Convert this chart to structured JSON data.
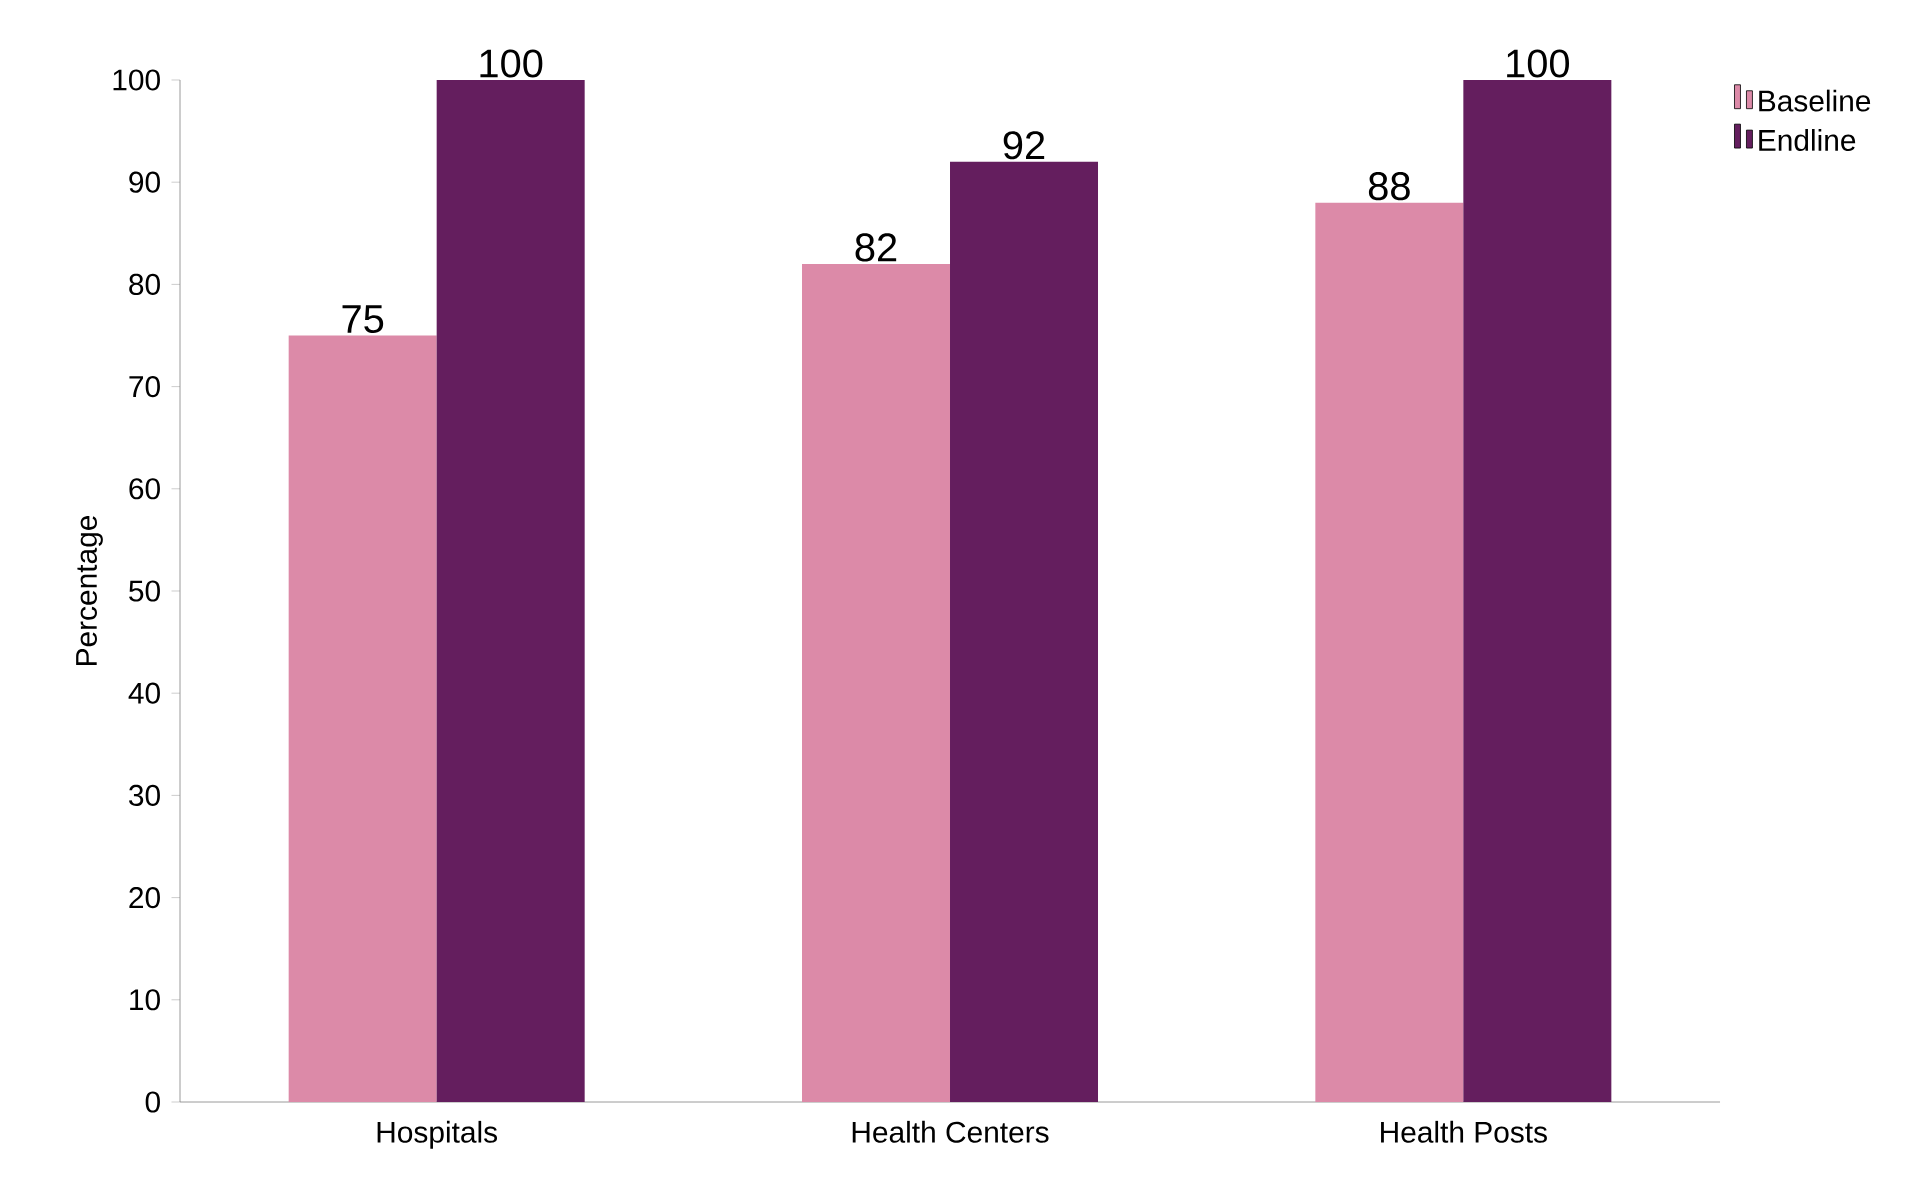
{
  "chart_data": {
    "type": "bar",
    "ylabel": "Percentage",
    "categories": [
      "Hospitals",
      "Health Centers",
      "Health Posts"
    ],
    "series": [
      {
        "name": "Baseline",
        "color": "#dc8aa8",
        "values": [
          75,
          82,
          88
        ]
      },
      {
        "name": "Endline",
        "color": "#641e5e",
        "values": [
          100,
          92,
          100
        ]
      }
    ],
    "ylim": [
      0,
      100
    ],
    "yticks": [
      0,
      10,
      20,
      30,
      40,
      50,
      60,
      70,
      80,
      90,
      100
    ],
    "data_labels": true,
    "legend": "top right",
    "grid": false
  }
}
